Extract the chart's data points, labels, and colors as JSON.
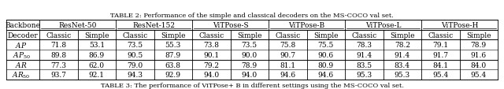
{
  "title": "TABLE 2: Performance of the simple and classical decoders on the MS-COCO val set.",
  "col_headers_l1": [
    "Backbone",
    "ResNet-50",
    "ResNet-152",
    "ViTPose-S",
    "ViTPose-B",
    "ViTPose-L",
    "ViTPose-H"
  ],
  "col_headers_l2": [
    "Decoder",
    "Classic",
    "Simple",
    "Classic",
    "Simple",
    "Classic",
    "Simple",
    "Classic",
    "Simple",
    "Classic",
    "Simple",
    "Classic",
    "Simple"
  ],
  "rows": [
    [
      "AP",
      "71.8",
      "53.1",
      "73.5",
      "55.3",
      "73.8",
      "73.5",
      "75.8",
      "75.5",
      "78.3",
      "78.2",
      "79.1",
      "78.9"
    ],
    [
      "AP50",
      "89.8",
      "86.9",
      "90.5",
      "87.9",
      "90.1",
      "90.0",
      "90.7",
      "90.6",
      "91.4",
      "91.4",
      "91.7",
      "91.6"
    ],
    [
      "AR",
      "77.3",
      "62.0",
      "79.0",
      "63.8",
      "79.2",
      "78.9",
      "81.1",
      "80.9",
      "83.5",
      "83.4",
      "84.1",
      "84.0"
    ],
    [
      "AR50",
      "93.7",
      "92.1",
      "94.3",
      "92.9",
      "94.0",
      "94.0",
      "94.6",
      "94.6",
      "95.3",
      "95.3",
      "95.4",
      "95.4"
    ]
  ],
  "caption": "TABLE 3: The performance of ViTPose+ B in different settings using the MS-COCO val set.",
  "bg_color": "#ffffff",
  "line_color": "#000000",
  "font_size": 6.5,
  "title_font_size": 6.0
}
